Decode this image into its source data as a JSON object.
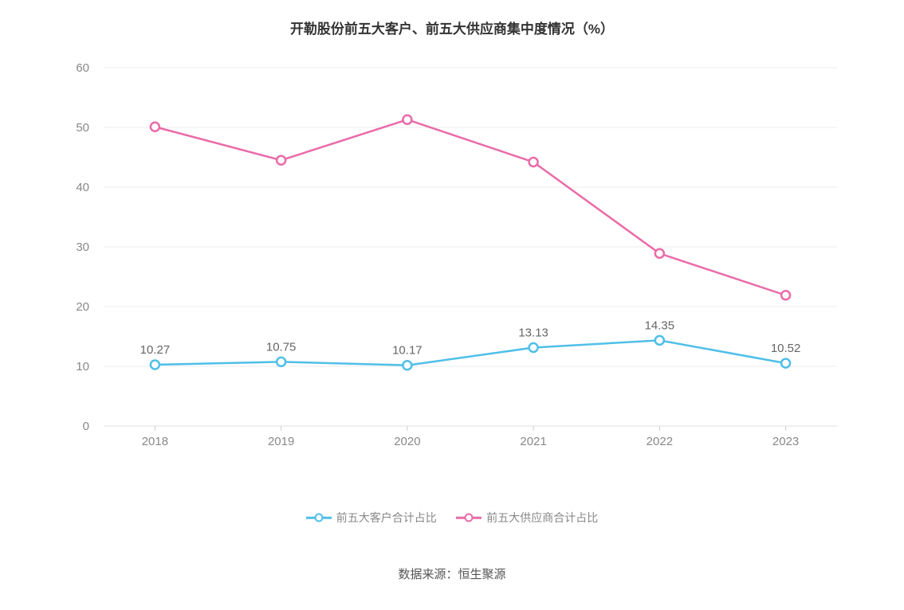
{
  "chart": {
    "type": "line",
    "title": "开勒股份前五大客户、前五大供应商集中度情况（%）",
    "title_fontsize": 17,
    "title_color": "#333333",
    "background_color": "#ffffff",
    "grid_color": "#eeeeee",
    "axis_color": "#dddddd",
    "tick_label_color": "#888888",
    "tick_label_fontsize": 15,
    "data_label_color": "#666666",
    "data_label_fontsize": 15,
    "categories": [
      "2018",
      "2019",
      "2020",
      "2021",
      "2022",
      "2023"
    ],
    "ylim_min": 0,
    "ylim_max": 60,
    "ytick_step": 10,
    "yticks": [
      0,
      10,
      20,
      30,
      40,
      50,
      60
    ],
    "line_width": 2.5,
    "marker_radius": 5.5,
    "marker_inner_fill": "#ffffff",
    "series": [
      {
        "key": "customers",
        "name": "前五大客户合计占比",
        "color": "#4fbfe8",
        "values": [
          10.27,
          10.75,
          10.17,
          13.13,
          14.35,
          10.52
        ],
        "show_labels": true,
        "labels": [
          "10.27",
          "10.75",
          "10.17",
          "13.13",
          "14.35",
          "10.52"
        ]
      },
      {
        "key": "suppliers",
        "name": "前五大供应商合计占比",
        "color": "#e96ba8",
        "values": [
          50.1,
          44.5,
          51.3,
          44.2,
          28.9,
          21.9
        ],
        "show_labels": false,
        "labels": []
      }
    ]
  },
  "legend": {
    "items": [
      {
        "label": "前五大客户合计占比",
        "color": "#4fbfe8"
      },
      {
        "label": "前五大供应商合计占比",
        "color": "#e96ba8"
      }
    ],
    "label_color": "#888888",
    "label_fontsize": 14
  },
  "source": {
    "prefix": "数据来源：",
    "name": "恒生聚源",
    "color": "#555555",
    "fontsize": 15
  }
}
